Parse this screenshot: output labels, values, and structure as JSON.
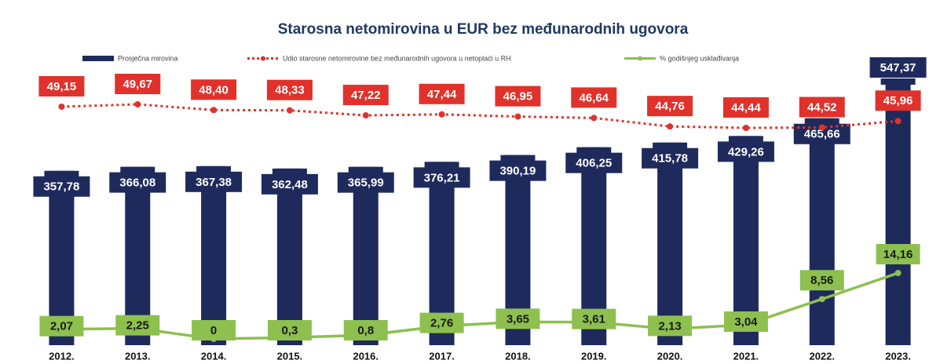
{
  "chart_data": {
    "type": "bar-line",
    "title": "Starosna netomirovina u EUR bez međunarodnih ugovora",
    "categories": [
      "2012.",
      "2013.",
      "2014.",
      "2015.",
      "2016.",
      "2017.",
      "2018.",
      "2019.",
      "2020.",
      "2021.",
      "2022.",
      "2023."
    ],
    "series": [
      {
        "name": "Prosječna mirovina",
        "type": "bar",
        "color": "#1f2a5c",
        "values": [
          357.78,
          366.08,
          367.38,
          362.48,
          365.99,
          376.21,
          390.19,
          406.25,
          415.78,
          429.26,
          465.66,
          547.37
        ],
        "value_labels": [
          "357,78",
          "366,08",
          "367,38",
          "362,48",
          "365,99",
          "376,21",
          "390,19",
          "406,25",
          "415,78",
          "429,26",
          "465,66",
          "547,37"
        ]
      },
      {
        "name": "Udio starosne netomirovine bez međunarodnih ugovora u netoplaći u RH",
        "type": "line",
        "style": "dotted",
        "color": "#e0322b",
        "values": [
          49.15,
          49.67,
          48.4,
          48.33,
          47.22,
          47.44,
          46.95,
          46.64,
          44.76,
          44.44,
          44.52,
          45.96
        ],
        "value_labels": [
          "49,15",
          "49,67",
          "48,40",
          "48,33",
          "47,22",
          "47,44",
          "46,95",
          "46,64",
          "44,76",
          "44,44",
          "44,52",
          "45,96"
        ]
      },
      {
        "name": "% godišnjeg usklađivanja",
        "type": "line",
        "style": "solid",
        "color": "#8dc04f",
        "values": [
          2.07,
          2.25,
          0,
          0.3,
          0.8,
          2.76,
          3.65,
          3.61,
          2.13,
          3.04,
          8.56,
          14.16
        ],
        "value_labels": [
          "2,07",
          "2,25",
          "0",
          "0,3",
          "0,8",
          "2,76",
          "3,65",
          "3,61",
          "2,13",
          "3,04",
          "8,56",
          "14,16"
        ]
      }
    ]
  }
}
